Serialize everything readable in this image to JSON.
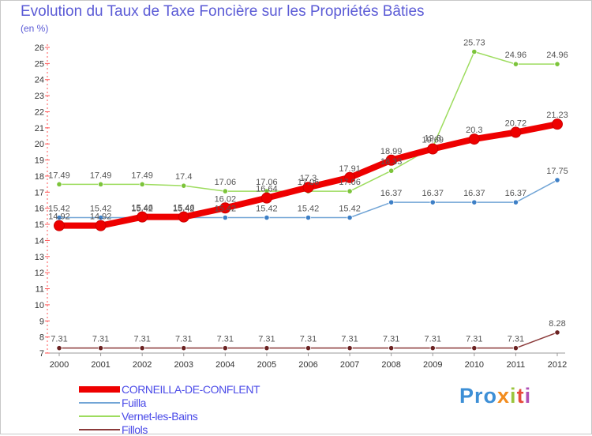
{
  "header": {
    "title": "Evolution du Taux de Taxe Foncière sur les Propriétés Bâties",
    "unit": "(en %)"
  },
  "brand": {
    "p1": "Pro",
    "p2": "x",
    "p3": "i",
    "p4": "t",
    "p5": "i"
  },
  "chart_data": {
    "type": "line",
    "title": "Evolution du Taux de Taxe Foncière sur les Propriétés Bâties",
    "ylabel": "(en %)",
    "xlabel": "",
    "ylim": [
      7,
      26
    ],
    "yticks": [
      7,
      8,
      9,
      10,
      11,
      12,
      13,
      14,
      15,
      16,
      17,
      18,
      19,
      20,
      21,
      22,
      23,
      24,
      25,
      26
    ],
    "grid": false,
    "legend": "bottom-left",
    "categories": [
      "2000",
      "2001",
      "2002",
      "2003",
      "2004",
      "2005",
      "2006",
      "2007",
      "2008",
      "2009",
      "2010",
      "2011",
      "2012"
    ],
    "series": [
      {
        "name": "CORNEILLA-DE-CONFLENT",
        "color": "#ee0000",
        "marker": "#ee0000",
        "values": [
          14.92,
          14.92,
          15.46,
          15.46,
          16.02,
          16.64,
          17.3,
          17.91,
          18.99,
          19.69,
          20.3,
          20.72,
          21.23
        ],
        "labels": [
          "14.92",
          "14.92",
          "15.46",
          "15.46",
          "16.02",
          "16.64",
          "17.3",
          "17.91",
          "18.99",
          "19.69",
          "20.3",
          "20.72",
          "21.23"
        ]
      },
      {
        "name": "Fuilla",
        "color": "#72a5d6",
        "marker": "#3d7fc6",
        "values": [
          15.42,
          15.42,
          15.42,
          15.42,
          15.42,
          15.42,
          15.42,
          15.42,
          16.37,
          16.37,
          16.37,
          16.37,
          17.75
        ],
        "labels": [
          "15.42",
          "15.42",
          "15.42",
          "15.42",
          "15.42",
          "15.42",
          "15.42",
          "15.42",
          "16.37",
          "16.37",
          "16.37",
          "16.37",
          "17.75"
        ]
      },
      {
        "name": "Vernet-les-Bains",
        "color": "#9ddc5e",
        "marker": "#7cc43a",
        "values": [
          17.49,
          17.49,
          17.49,
          17.4,
          17.06,
          17.06,
          17.06,
          17.06,
          18.33,
          19.8,
          25.73,
          24.96,
          24.96
        ],
        "labels": [
          "17.49",
          "17.49",
          "17.49",
          "17.4",
          "17.06",
          "17.06",
          "17.06",
          "17.06",
          "18.33",
          "19.8",
          "25.73",
          "24.96",
          "24.96"
        ]
      },
      {
        "name": "Fillols",
        "color": "#8b3a3a",
        "marker": "#6b2222",
        "values": [
          7.31,
          7.31,
          7.31,
          7.31,
          7.31,
          7.31,
          7.31,
          7.31,
          7.31,
          7.31,
          7.31,
          7.31,
          8.28
        ],
        "labels": [
          "7.31",
          "7.31",
          "7.31",
          "7.31",
          "7.31",
          "7.31",
          "7.31",
          "7.31",
          "7.31",
          "7.31",
          "7.31",
          "7.31",
          "8.28"
        ]
      }
    ]
  }
}
